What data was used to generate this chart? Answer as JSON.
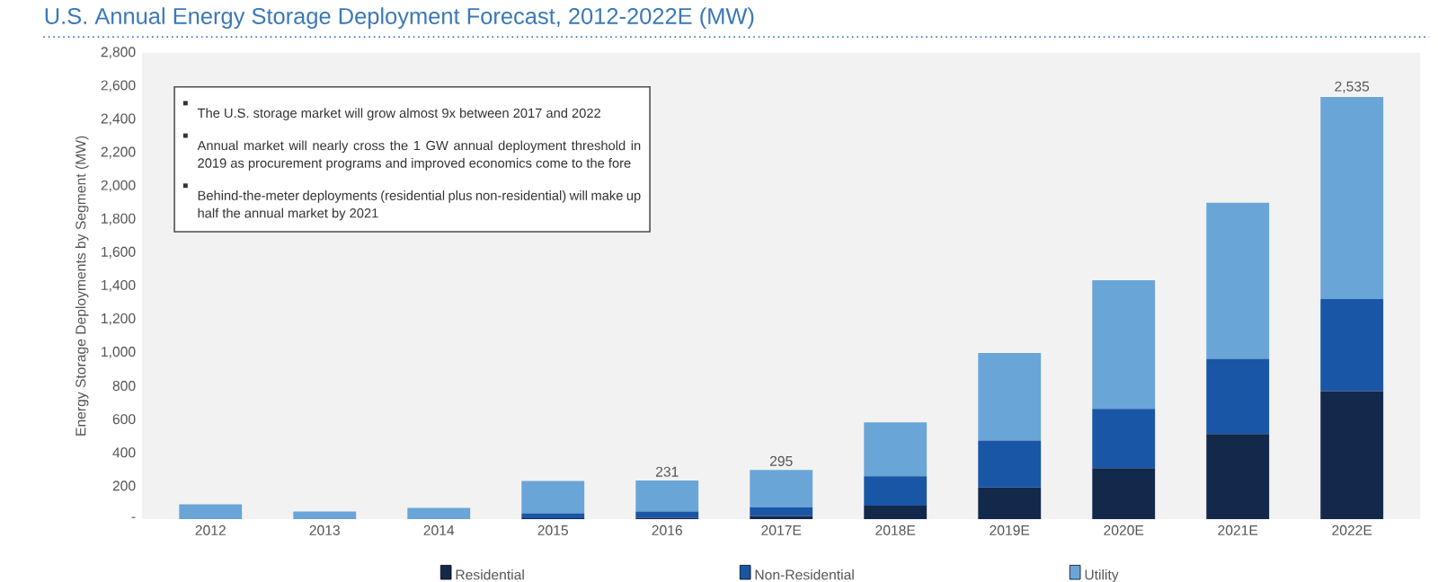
{
  "chart_data": {
    "type": "bar",
    "stacked": true,
    "title": "U.S. Annual Energy Storage Deployment Forecast, 2012-2022E (MW)",
    "ylabel": "Energy Storage Deployments by Segment (MW)",
    "annotations": [
      "The U.S. storage market will grow almost 9x between 2017 and 2022",
      "Annual market will nearly cross the 1 GW annual deployment threshold in 2019 as procurement programs and improved economics come to the fore",
      "Behind-the-meter deployments (residential plus non-residential) will make up half the annual market by 2021"
    ],
    "categories": [
      "2012",
      "2013",
      "2014",
      "2015",
      "2016",
      "2017E",
      "2018E",
      "2019E",
      "2020E",
      "2021E",
      "2022E"
    ],
    "series": [
      {
        "name": "Residential",
        "color": "#13294b",
        "values": [
          0,
          0,
          0,
          5,
          8,
          18,
          81,
          190,
          306,
          511,
          768
        ]
      },
      {
        "name": "Non-Residential",
        "color": "#1a56a6",
        "values": [
          0,
          0,
          0,
          30,
          38,
          53,
          176,
          282,
          356,
          451,
          553
        ]
      },
      {
        "name": "Utility",
        "color": "#6aa5d8",
        "values": [
          88,
          46,
          67,
          194,
          185,
          224,
          324,
          525,
          772,
          937,
          1214
        ]
      }
    ],
    "totals": [
      null,
      null,
      null,
      null,
      "231",
      "295",
      null,
      null,
      null,
      null,
      "2,535"
    ],
    "ylim": [
      0,
      2800
    ],
    "yticks": [
      {
        "value": 0,
        "label": "-"
      },
      {
        "value": 200,
        "label": "200"
      },
      {
        "value": 400,
        "label": "400"
      },
      {
        "value": 600,
        "label": "600"
      },
      {
        "value": 800,
        "label": "800"
      },
      {
        "value": 1000,
        "label": "1,000"
      },
      {
        "value": 1200,
        "label": "1,200"
      },
      {
        "value": 1400,
        "label": "1,400"
      },
      {
        "value": 1600,
        "label": "1,600"
      },
      {
        "value": 1800,
        "label": "1,800"
      },
      {
        "value": 2000,
        "label": "2,000"
      },
      {
        "value": 2200,
        "label": "2,200"
      },
      {
        "value": 2400,
        "label": "2,400"
      },
      {
        "value": 2600,
        "label": "2,600"
      },
      {
        "value": 2800,
        "label": "2,800"
      }
    ],
    "legend": "bottom"
  }
}
